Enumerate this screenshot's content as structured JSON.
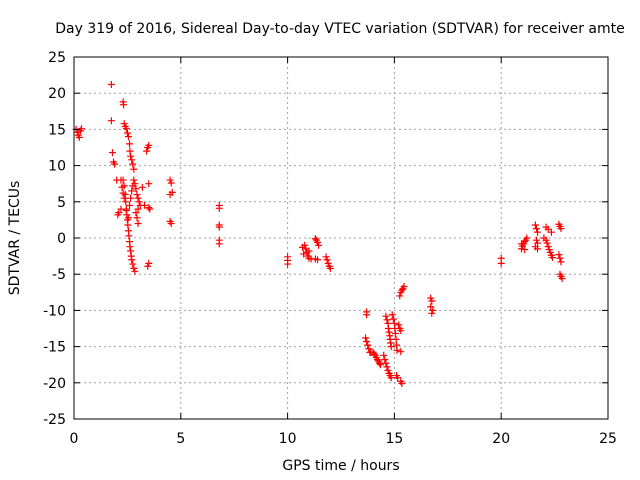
{
  "chart_data": {
    "type": "scatter",
    "title": "Day 319 of 2016, Sidereal Day-to-day VTEC variation (SDTVAR) for receiver amte",
    "xlabel": "GPS time / hours",
    "ylabel": "SDTVAR / TECUs",
    "xlim": [
      0,
      25
    ],
    "ylim": [
      -25,
      25
    ],
    "xticks": [
      "0",
      "5",
      "10",
      "15",
      "20",
      "25"
    ],
    "yticks": [
      "25",
      "20",
      "15",
      "10",
      "5",
      "0",
      "-5",
      "-10",
      "-15",
      "-20",
      "-25"
    ],
    "xtick_values": [
      0,
      5,
      10,
      15,
      20,
      25
    ],
    "ytick_values": [
      25,
      20,
      15,
      10,
      5,
      0,
      -5,
      -10,
      -15,
      -20,
      -25
    ],
    "grid": true,
    "marker": "+",
    "color": "#ff0000",
    "series": [
      {
        "points": [
          [
            0.1,
            15.0
          ],
          [
            0.15,
            14.6
          ],
          [
            0.2,
            14.2
          ],
          [
            0.25,
            13.9
          ],
          [
            0.3,
            14.8
          ],
          [
            0.35,
            15.1
          ],
          [
            1.75,
            21.2
          ],
          [
            1.75,
            16.2
          ],
          [
            1.8,
            11.8
          ],
          [
            1.85,
            10.5
          ],
          [
            1.9,
            10.2
          ],
          [
            2.0,
            8.0
          ],
          [
            2.05,
            3.2
          ],
          [
            2.1,
            3.5
          ],
          [
            2.2,
            4.0
          ],
          [
            2.3,
            18.8
          ],
          [
            2.32,
            18.4
          ],
          [
            2.35,
            15.8
          ],
          [
            2.4,
            15.4
          ],
          [
            2.45,
            15.1
          ],
          [
            2.5,
            14.5
          ],
          [
            2.55,
            14.0
          ],
          [
            2.6,
            13.0
          ],
          [
            2.62,
            12.0
          ],
          [
            2.65,
            11.3
          ],
          [
            2.7,
            10.8
          ],
          [
            2.75,
            10.2
          ],
          [
            2.8,
            9.5
          ],
          [
            2.3,
            8.0
          ],
          [
            2.35,
            7.2
          ],
          [
            2.4,
            6.0
          ],
          [
            2.42,
            5.0
          ],
          [
            2.45,
            4.0
          ],
          [
            2.47,
            3.2
          ],
          [
            2.5,
            2.5
          ],
          [
            2.52,
            1.8
          ],
          [
            2.55,
            1.0
          ],
          [
            2.57,
            0.3
          ],
          [
            2.6,
            -0.5
          ],
          [
            2.62,
            -1.2
          ],
          [
            2.65,
            -1.8
          ],
          [
            2.68,
            -2.5
          ],
          [
            2.7,
            -3.0
          ],
          [
            2.75,
            -3.6
          ],
          [
            2.8,
            -4.2
          ],
          [
            2.85,
            -4.6
          ],
          [
            2.2,
            8.0
          ],
          [
            2.25,
            7.0
          ],
          [
            2.3,
            6.2
          ],
          [
            2.35,
            5.5
          ],
          [
            2.45,
            3.8
          ],
          [
            2.55,
            2.8
          ],
          [
            2.6,
            4.5
          ],
          [
            2.65,
            5.5
          ],
          [
            2.7,
            6.5
          ],
          [
            2.75,
            7.2
          ],
          [
            2.8,
            8.0
          ],
          [
            2.85,
            7.5
          ],
          [
            2.9,
            6.8
          ],
          [
            2.95,
            6.0
          ],
          [
            3.0,
            5.5
          ],
          [
            3.05,
            5.0
          ],
          [
            2.9,
            3.5
          ],
          [
            2.95,
            2.8
          ],
          [
            3.0,
            2.0
          ],
          [
            3.0,
            4.0
          ],
          [
            3.1,
            4.5
          ],
          [
            3.2,
            7.0
          ],
          [
            3.3,
            4.5
          ],
          [
            3.4,
            12.0
          ],
          [
            3.45,
            12.5
          ],
          [
            3.5,
            12.8
          ],
          [
            3.5,
            7.5
          ],
          [
            3.5,
            4.2
          ],
          [
            3.5,
            -3.5
          ],
          [
            3.45,
            -3.9
          ],
          [
            3.55,
            4.0
          ],
          [
            4.5,
            8.0
          ],
          [
            4.55,
            7.6
          ],
          [
            4.6,
            6.3
          ],
          [
            4.5,
            6.0
          ],
          [
            4.5,
            2.3
          ],
          [
            4.55,
            2.0
          ],
          [
            6.8,
            4.5
          ],
          [
            6.8,
            4.1
          ],
          [
            6.8,
            1.8
          ],
          [
            6.8,
            1.5
          ],
          [
            6.8,
            -0.3
          ],
          [
            6.8,
            -0.8
          ],
          [
            10.0,
            -2.6
          ],
          [
            10.0,
            -3.1
          ],
          [
            10.0,
            -3.6
          ],
          [
            10.7,
            -1.3
          ],
          [
            10.8,
            -1.0
          ],
          [
            10.85,
            -1.5
          ],
          [
            10.9,
            -2.0
          ],
          [
            10.95,
            -2.5
          ],
          [
            11.0,
            -2.8
          ],
          [
            11.0,
            -1.8
          ],
          [
            10.75,
            -2.2
          ],
          [
            11.1,
            -2.9
          ],
          [
            11.3,
            -0.1
          ],
          [
            11.35,
            -0.3
          ],
          [
            11.4,
            -0.6
          ],
          [
            11.45,
            -1.0
          ],
          [
            11.3,
            -2.9
          ],
          [
            11.4,
            -3.0
          ],
          [
            11.8,
            -2.6
          ],
          [
            11.85,
            -3.0
          ],
          [
            11.9,
            -3.5
          ],
          [
            11.95,
            -3.9
          ],
          [
            12.0,
            -4.2
          ],
          [
            13.7,
            -10.6
          ],
          [
            13.7,
            -10.2
          ],
          [
            13.65,
            -13.8
          ],
          [
            13.7,
            -14.3
          ],
          [
            13.75,
            -14.8
          ],
          [
            13.8,
            -15.3
          ],
          [
            13.85,
            -15.8
          ],
          [
            13.9,
            -15.8
          ],
          [
            14.0,
            -15.8
          ],
          [
            14.05,
            -16.0
          ],
          [
            14.1,
            -16.2
          ],
          [
            14.15,
            -16.5
          ],
          [
            14.2,
            -16.8
          ],
          [
            14.25,
            -17.0
          ],
          [
            14.3,
            -17.3
          ],
          [
            14.35,
            -17.5
          ],
          [
            14.5,
            -16.2
          ],
          [
            14.55,
            -16.8
          ],
          [
            14.6,
            -17.3
          ],
          [
            14.65,
            -17.8
          ],
          [
            14.7,
            -18.3
          ],
          [
            14.75,
            -18.7
          ],
          [
            14.8,
            -19.0
          ],
          [
            14.85,
            -19.3
          ],
          [
            14.6,
            -10.8
          ],
          [
            14.65,
            -11.3
          ],
          [
            14.7,
            -11.8
          ],
          [
            14.72,
            -12.5
          ],
          [
            14.75,
            -13.0
          ],
          [
            14.78,
            -13.5
          ],
          [
            14.8,
            -14.0
          ],
          [
            14.82,
            -14.5
          ],
          [
            14.85,
            -15.0
          ],
          [
            14.9,
            -10.6
          ],
          [
            14.95,
            -11.2
          ],
          [
            15.0,
            -11.8
          ],
          [
            15.02,
            -12.5
          ],
          [
            15.05,
            -13.2
          ],
          [
            15.08,
            -14.0
          ],
          [
            15.1,
            -14.8
          ],
          [
            15.12,
            -15.5
          ],
          [
            15.1,
            -19.0
          ],
          [
            15.15,
            -19.3
          ],
          [
            15.2,
            -12.0
          ],
          [
            15.25,
            -12.5
          ],
          [
            15.3,
            -12.8
          ],
          [
            15.25,
            -8.0
          ],
          [
            15.3,
            -7.5
          ],
          [
            15.35,
            -7.2
          ],
          [
            15.4,
            -7.0
          ],
          [
            15.45,
            -6.7
          ],
          [
            15.3,
            -15.7
          ],
          [
            15.3,
            -19.8
          ],
          [
            15.35,
            -20.1
          ],
          [
            16.7,
            -8.3
          ],
          [
            16.75,
            -8.7
          ],
          [
            16.7,
            -9.5
          ],
          [
            16.8,
            -10.0
          ],
          [
            16.75,
            -10.4
          ],
          [
            20.0,
            -2.8
          ],
          [
            20.0,
            -3.5
          ],
          [
            20.95,
            -1.5
          ],
          [
            21.0,
            -1.1
          ],
          [
            21.05,
            -0.8
          ],
          [
            21.1,
            -0.5
          ],
          [
            21.15,
            -0.3
          ],
          [
            21.2,
            0.0
          ],
          [
            20.95,
            -0.8
          ],
          [
            21.1,
            -1.6
          ],
          [
            21.6,
            1.8
          ],
          [
            21.65,
            1.3
          ],
          [
            21.7,
            0.8
          ],
          [
            21.65,
            -0.3
          ],
          [
            21.7,
            -0.7
          ],
          [
            21.6,
            -1.2
          ],
          [
            21.7,
            -1.5
          ],
          [
            22.0,
            0.0
          ],
          [
            22.1,
            -0.3
          ],
          [
            22.15,
            -0.7
          ],
          [
            22.2,
            -1.2
          ],
          [
            22.25,
            -1.6
          ],
          [
            22.3,
            -2.0
          ],
          [
            22.35,
            -2.4
          ],
          [
            22.4,
            -2.7
          ],
          [
            22.1,
            1.5
          ],
          [
            22.2,
            1.2
          ],
          [
            22.35,
            0.8
          ],
          [
            22.7,
            1.9
          ],
          [
            22.75,
            1.6
          ],
          [
            22.8,
            1.3
          ],
          [
            22.7,
            -2.3
          ],
          [
            22.75,
            -2.8
          ],
          [
            22.8,
            -3.3
          ],
          [
            22.75,
            -5.0
          ],
          [
            22.8,
            -5.3
          ],
          [
            22.85,
            -5.6
          ]
        ]
      }
    ]
  }
}
